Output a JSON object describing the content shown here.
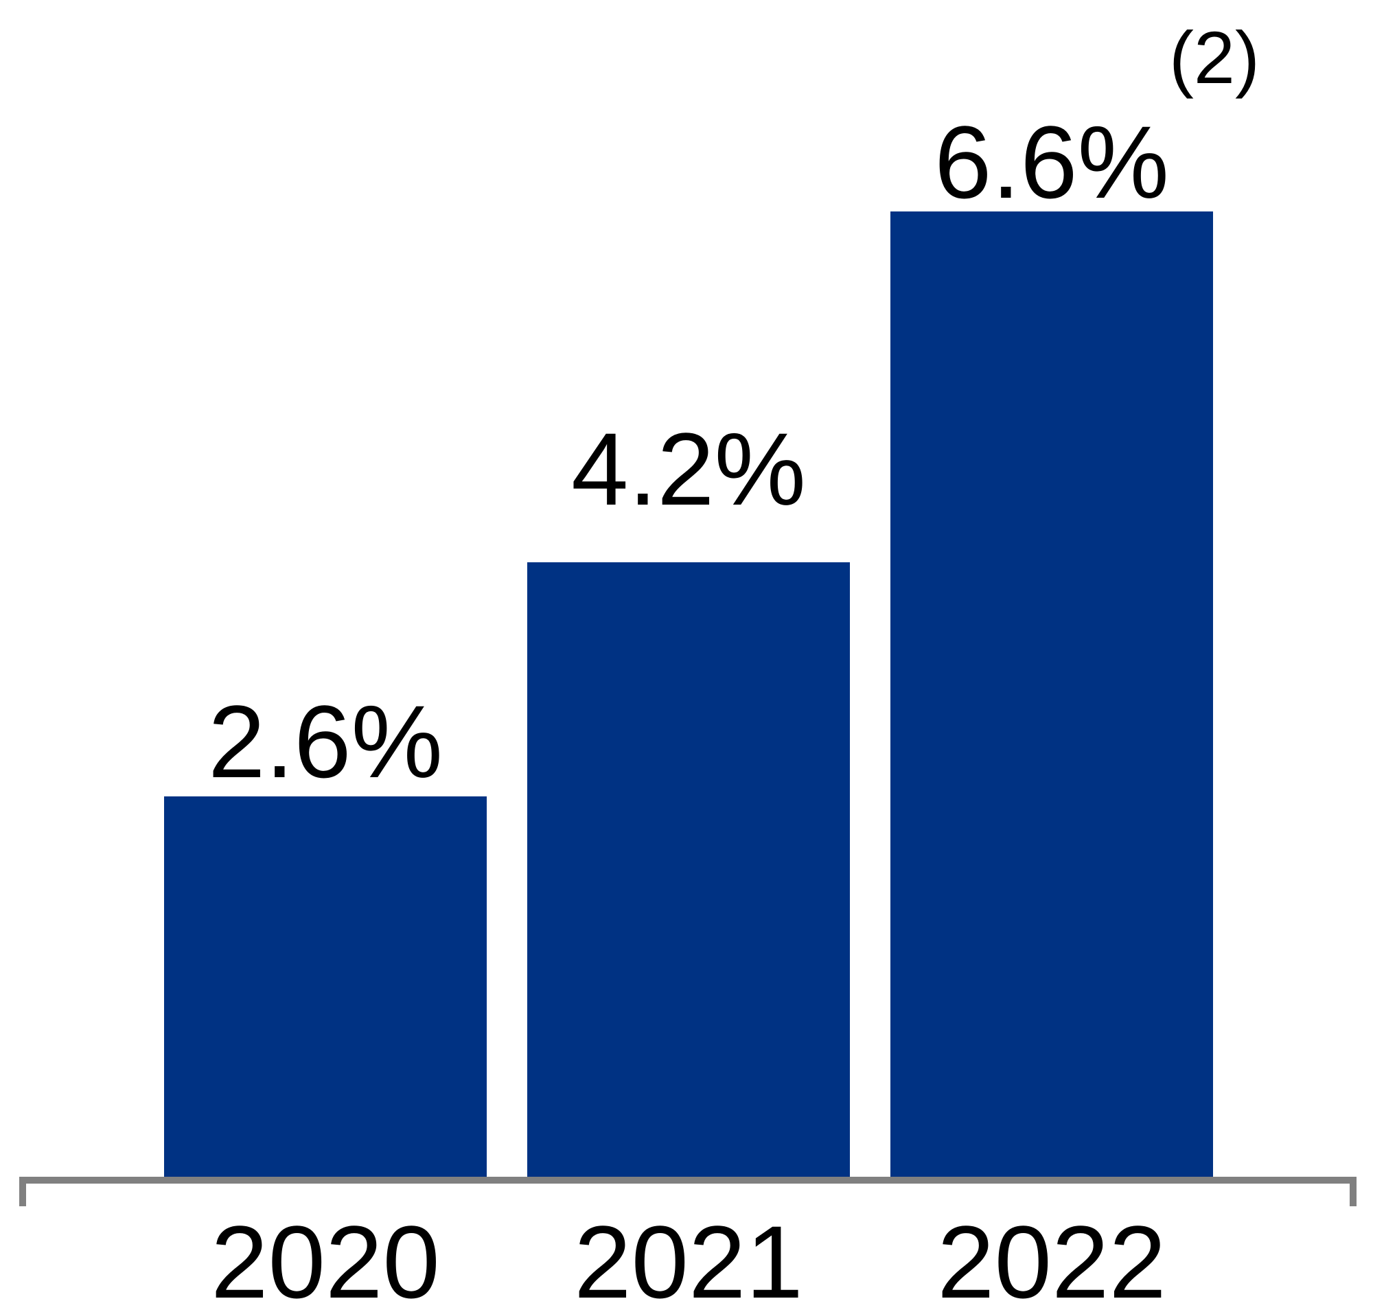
{
  "chart_data": {
    "type": "bar",
    "categories": [
      "2020",
      "2021",
      "2022"
    ],
    "values": [
      2.6,
      4.2,
      6.6
    ],
    "bar_labels": [
      "2.6%",
      "4.2%",
      "6.6%"
    ],
    "bar_label_superscripts": [
      "",
      "",
      "(2)"
    ],
    "title": "",
    "xlabel": "",
    "ylabel": "",
    "ylim": [
      0,
      6.6
    ],
    "grid": false,
    "legend": false,
    "axis_shown": "x-only",
    "colors": {
      "bar": "#003283",
      "axis": "#808080",
      "text": "#000000",
      "background": "#ffffff"
    }
  }
}
